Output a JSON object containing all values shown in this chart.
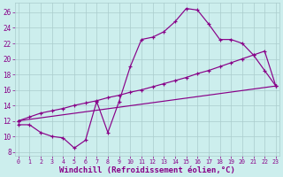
{
  "bg_color": "#cceeed",
  "line_color": "#880088",
  "grid_color": "#aacccc",
  "xlabel": "Windchill (Refroidissement éolien,°C)",
  "xlabel_fontsize": 6.5,
  "yticks": [
    8,
    10,
    12,
    14,
    16,
    18,
    20,
    22,
    24,
    26
  ],
  "xticks": [
    0,
    1,
    2,
    3,
    4,
    5,
    6,
    7,
    8,
    9,
    10,
    11,
    12,
    13,
    14,
    15,
    16,
    17,
    18,
    19,
    20,
    21,
    22,
    23
  ],
  "xlim": [
    -0.3,
    23.3
  ],
  "ylim": [
    7.5,
    27.2
  ],
  "line1_x": [
    0,
    1,
    2,
    3,
    4,
    5,
    6,
    7,
    8,
    9,
    10,
    11,
    12,
    13,
    14,
    15,
    16,
    17,
    18,
    19,
    20,
    21,
    22,
    23
  ],
  "line1_y": [
    11.5,
    11.5,
    10.5,
    10.0,
    9.8,
    8.5,
    9.5,
    14.5,
    10.5,
    14.5,
    19.0,
    22.5,
    22.8,
    23.5,
    24.8,
    26.5,
    26.3,
    24.5,
    22.5,
    22.5,
    22.0,
    20.5,
    18.5,
    16.5
  ],
  "line2_x": [
    0,
    1,
    2,
    3,
    4,
    5,
    6,
    7,
    8,
    9,
    10,
    11,
    12,
    13,
    14,
    15,
    16,
    17,
    18,
    19,
    20,
    21,
    22,
    23
  ],
  "line2_y": [
    12.0,
    12.5,
    13.0,
    13.3,
    13.6,
    14.0,
    14.3,
    14.6,
    15.0,
    15.3,
    15.7,
    16.0,
    16.4,
    16.8,
    17.2,
    17.6,
    18.1,
    18.5,
    19.0,
    19.5,
    20.0,
    20.5,
    21.0,
    16.5
  ],
  "line3_x": [
    0,
    23
  ],
  "line3_y": [
    12.0,
    16.5
  ]
}
